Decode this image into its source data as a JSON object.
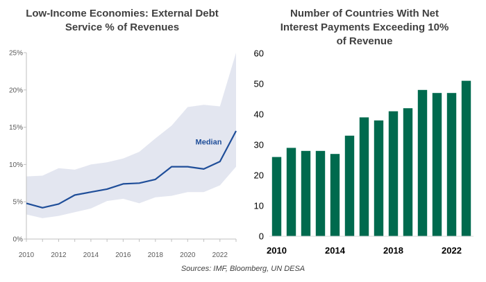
{
  "chart_data": [
    {
      "type": "area",
      "title_lines": [
        "Low-Income Economies: External Debt",
        "Service % of Revenues"
      ],
      "x": [
        2010,
        2011,
        2012,
        2013,
        2014,
        2015,
        2016,
        2017,
        2018,
        2019,
        2020,
        2021,
        2022,
        2023
      ],
      "xticks": [
        2010,
        2012,
        2014,
        2016,
        2018,
        2020,
        2022
      ],
      "yticks": [
        0,
        5,
        10,
        15,
        20,
        25
      ],
      "ytick_labels": [
        "0%",
        "5%",
        "10%",
        "15%",
        "20%",
        "25%"
      ],
      "xlim": [
        2010,
        2023
      ],
      "ylim": [
        0,
        25
      ],
      "band": {
        "lower": [
          3.3,
          2.8,
          3.1,
          3.6,
          4.1,
          5.1,
          5.4,
          4.8,
          5.6,
          5.8,
          6.3,
          6.3,
          7.2,
          9.7
        ],
        "upper": [
          8.4,
          8.5,
          9.5,
          9.3,
          10.0,
          10.3,
          10.8,
          11.7,
          13.5,
          15.2,
          17.7,
          18.0,
          17.8,
          25.0
        ]
      },
      "series": [
        {
          "name": "Median",
          "values": [
            4.8,
            4.2,
            4.7,
            5.9,
            6.3,
            6.7,
            7.4,
            7.5,
            8.0,
            9.7,
            9.7,
            9.4,
            10.4,
            14.5
          ]
        }
      ],
      "colors": {
        "line": "#1f4e99",
        "band": "#e3e6f0",
        "axis": "#bfbfbf",
        "tick": "#595959",
        "title": "#404040"
      }
    },
    {
      "type": "bar",
      "title_lines": [
        "Number of Countries With Net",
        "Interest Payments Exceeding 10%",
        "of Revenue"
      ],
      "categories": [
        2010,
        2011,
        2012,
        2013,
        2014,
        2015,
        2016,
        2017,
        2018,
        2019,
        2020,
        2021,
        2022,
        2023
      ],
      "values": [
        26,
        29,
        28,
        28,
        27,
        33,
        39,
        38,
        41,
        42,
        48,
        47,
        47,
        51
      ],
      "xtick_labels": [
        "2010",
        "2014",
        "2018",
        "2022"
      ],
      "xtick_years": [
        2010,
        2014,
        2018,
        2022
      ],
      "yticks": [
        0,
        10,
        20,
        30,
        40,
        50,
        60
      ],
      "ylim": [
        0,
        60
      ],
      "grid": false,
      "colors": {
        "bar": "#006a4e",
        "axis": "#d9d9d9",
        "title": "#404040"
      }
    }
  ],
  "footer": {
    "sources": "Sources: IMF, Bloomberg, UN DESA"
  }
}
